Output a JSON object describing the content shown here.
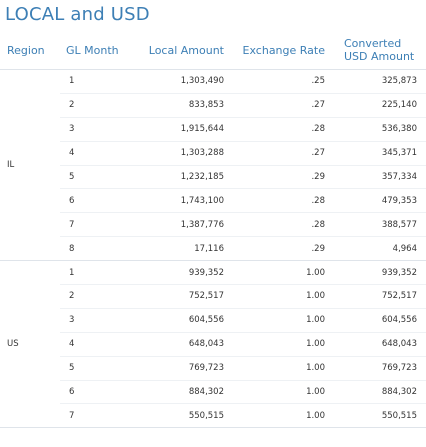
{
  "title": "LOCAL and USD",
  "columns": {
    "region": "Region",
    "gl_month": "GL Month",
    "local_amount": "Local Amount",
    "exchange_rate": "Exchange Rate",
    "converted_line1": "Converted",
    "converted_line2": "USD Amount"
  },
  "groups": [
    {
      "region": "IL",
      "rows": [
        {
          "month": "1",
          "local": "1,303,490",
          "rate": ".25",
          "usd": "325,873"
        },
        {
          "month": "2",
          "local": "833,853",
          "rate": ".27",
          "usd": "225,140"
        },
        {
          "month": "3",
          "local": "1,915,644",
          "rate": ".28",
          "usd": "536,380"
        },
        {
          "month": "4",
          "local": "1,303,288",
          "rate": ".27",
          "usd": "345,371"
        },
        {
          "month": "5",
          "local": "1,232,185",
          "rate": ".29",
          "usd": "357,334"
        },
        {
          "month": "6",
          "local": "1,743,100",
          "rate": ".28",
          "usd": "479,353"
        },
        {
          "month": "7",
          "local": "1,387,776",
          "rate": ".28",
          "usd": "388,577"
        },
        {
          "month": "8",
          "local": "17,116",
          "rate": ".29",
          "usd": "4,964"
        }
      ]
    },
    {
      "region": "US",
      "rows": [
        {
          "month": "1",
          "local": "939,352",
          "rate": "1.00",
          "usd": "939,352"
        },
        {
          "month": "2",
          "local": "752,517",
          "rate": "1.00",
          "usd": "752,517"
        },
        {
          "month": "3",
          "local": "604,556",
          "rate": "1.00",
          "usd": "604,556"
        },
        {
          "month": "4",
          "local": "648,043",
          "rate": "1.00",
          "usd": "648,043"
        },
        {
          "month": "5",
          "local": "769,723",
          "rate": "1.00",
          "usd": "769,723"
        },
        {
          "month": "6",
          "local": "884,302",
          "rate": "1.00",
          "usd": "884,302"
        },
        {
          "month": "7",
          "local": "550,515",
          "rate": "1.00",
          "usd": "550,515"
        }
      ]
    }
  ]
}
